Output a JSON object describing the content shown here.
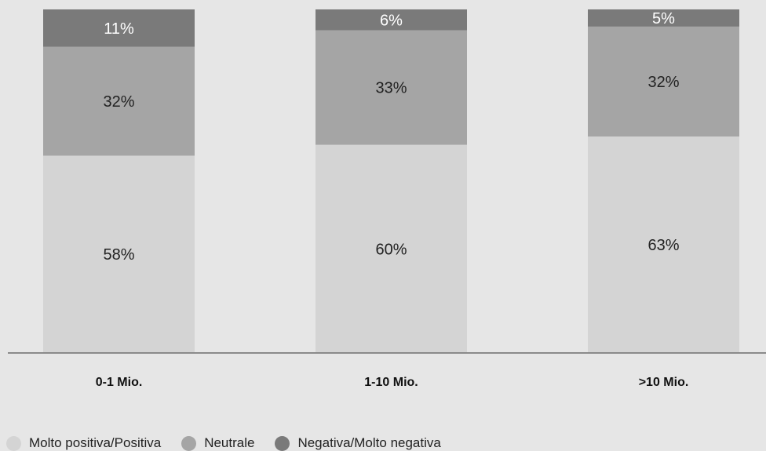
{
  "chart_data": {
    "type": "bar",
    "stacked": true,
    "categories": [
      "0-1 Mio.",
      "1-10 Mio.",
      ">10 Mio."
    ],
    "series": [
      {
        "name": "Molto positiva/Positiva",
        "values": [
          58,
          60,
          63
        ],
        "labels": [
          "58%",
          "60%",
          "63%"
        ],
        "color": "#d4d4d4"
      },
      {
        "name": "Neutrale",
        "values": [
          32,
          33,
          32
        ],
        "labels": [
          "32%",
          "33%",
          "32%"
        ],
        "color": "#a5a5a5"
      },
      {
        "name": "Negativa/Molto negativa",
        "values": [
          11,
          6,
          5
        ],
        "labels": [
          "11%",
          "6%",
          "5%"
        ],
        "color": "#7a7a7a"
      }
    ],
    "ylim": [
      0,
      100
    ],
    "grid": false,
    "legend_position": "bottom-left",
    "title": "",
    "xlabel": "",
    "ylabel": ""
  }
}
